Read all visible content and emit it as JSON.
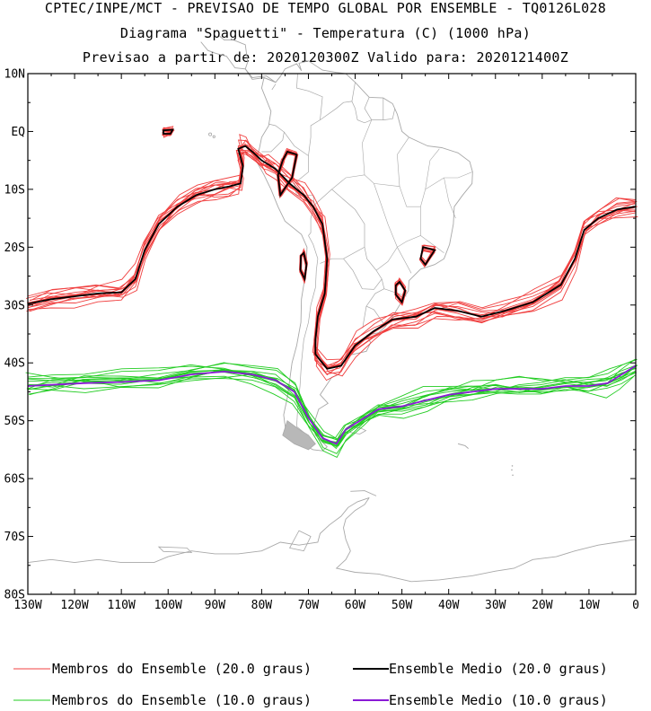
{
  "header": {
    "line1": "CPTEC/INPE/MCT - PREVISAO DE TEMPO GLOBAL POR ENSEMBLE - TQ0126L028",
    "line2": "Diagrama \"Spaguetti\" - Temperatura (C) (1000 hPa)",
    "line3": "Previsao a partir de: 2020120300Z  Valido para: 2020121400Z"
  },
  "map": {
    "lon_range": [
      -130,
      0
    ],
    "lat_range": [
      -80,
      10
    ],
    "y_tick_labels": [
      {
        "lat": 10,
        "label": "10N"
      },
      {
        "lat": 0,
        "label": "EQ"
      },
      {
        "lat": -10,
        "label": "10S"
      },
      {
        "lat": -20,
        "label": "20S"
      },
      {
        "lat": -30,
        "label": "30S"
      },
      {
        "lat": -40,
        "label": "40S"
      },
      {
        "lat": -50,
        "label": "50S"
      },
      {
        "lat": -60,
        "label": "60S"
      },
      {
        "lat": -70,
        "label": "70S"
      },
      {
        "lat": -80,
        "label": "80S"
      }
    ],
    "x_tick_labels": [
      {
        "lon": -130,
        "label": "130W"
      },
      {
        "lon": -120,
        "label": "120W"
      },
      {
        "lon": -110,
        "label": "110W"
      },
      {
        "lon": -100,
        "label": "100W"
      },
      {
        "lon": -90,
        "label": "90W"
      },
      {
        "lon": -80,
        "label": "80W"
      },
      {
        "lon": -70,
        "label": "70W"
      },
      {
        "lon": -60,
        "label": "60W"
      },
      {
        "lon": -50,
        "label": "50W"
      },
      {
        "lon": -40,
        "label": "40W"
      },
      {
        "lon": -30,
        "label": "30W"
      },
      {
        "lon": -20,
        "label": "20W"
      },
      {
        "lon": -10,
        "label": "10W"
      },
      {
        "lon": 0,
        "label": "0"
      }
    ],
    "colors": {
      "members_20": "#f04040",
      "mean_20": "#000000",
      "members_10": "#22cc22",
      "mean_10": "#8a1ad6",
      "coast": "#a8a8a8"
    },
    "isotherm_20_mean": [
      [
        -130,
        -29.8
      ],
      [
        -125,
        -29
      ],
      [
        -120,
        -28.5
      ],
      [
        -115,
        -28
      ],
      [
        -110,
        -27.8
      ],
      [
        -107,
        -25.5
      ],
      [
        -105,
        -20.5
      ],
      [
        -102,
        -16
      ],
      [
        -98,
        -13
      ],
      [
        -94,
        -11
      ],
      [
        -90,
        -10
      ],
      [
        -87,
        -9.5
      ],
      [
        -84.5,
        -9
      ],
      [
        -84,
        -6
      ],
      [
        -85,
        -3
      ],
      [
        -83.5,
        -2.5
      ],
      [
        -82,
        -3.5
      ],
      [
        -80,
        -5
      ],
      [
        -79,
        -5.5
      ],
      [
        -77,
        -6.5
      ],
      [
        -74,
        -9
      ],
      [
        -71,
        -11
      ],
      [
        -69,
        -13
      ],
      [
        -67,
        -16
      ],
      [
        -66,
        -22
      ],
      [
        -66.5,
        -28
      ],
      [
        -68,
        -32
      ],
      [
        -68.5,
        -36
      ],
      [
        -68.5,
        -38.5
      ],
      [
        -66,
        -41
      ],
      [
        -63,
        -40.5
      ],
      [
        -60,
        -37
      ],
      [
        -56,
        -34.5
      ],
      [
        -52,
        -32.5
      ],
      [
        -47,
        -32
      ],
      [
        -43,
        -30.5
      ],
      [
        -38,
        -31
      ],
      [
        -33,
        -32
      ],
      [
        -28,
        -31
      ],
      [
        -22,
        -29.5
      ],
      [
        -16,
        -26.5
      ],
      [
        -13,
        -22
      ],
      [
        -11,
        -17
      ],
      [
        -8,
        -15
      ],
      [
        -4,
        -13.5
      ],
      [
        0,
        -13
      ]
    ],
    "isotherm_20_mean_closed": [
      [
        [
          -74.5,
          -3.5
        ],
        [
          -72.5,
          -4
        ],
        [
          -73.5,
          -8
        ],
        [
          -76,
          -11
        ],
        [
          -76.5,
          -7.5
        ],
        [
          -75.5,
          -5
        ]
      ],
      [
        [
          -101,
          0.2
        ],
        [
          -99,
          0.3
        ],
        [
          -99.5,
          -0.4
        ],
        [
          -101,
          -0.4
        ]
      ],
      [
        [
          -71,
          -21
        ],
        [
          -70.4,
          -23
        ],
        [
          -70.8,
          -25.5
        ],
        [
          -71.7,
          -24
        ],
        [
          -71.6,
          -21.5
        ]
      ],
      [
        [
          -50.5,
          -26
        ],
        [
          -49.3,
          -27.5
        ],
        [
          -50,
          -29.5
        ],
        [
          -51.3,
          -28.2
        ],
        [
          -51.3,
          -26.6
        ]
      ],
      [
        [
          -45.5,
          -20
        ],
        [
          -43,
          -20.5
        ],
        [
          -45,
          -23
        ],
        [
          -46,
          -22
        ]
      ]
    ],
    "isotherm_10_mean": [
      [
        -130,
        -44
      ],
      [
        -125,
        -43.8
      ],
      [
        -118,
        -43.5
      ],
      [
        -110,
        -43.3
      ],
      [
        -102,
        -43
      ],
      [
        -95,
        -42
      ],
      [
        -88,
        -41.5
      ],
      [
        -82,
        -42
      ],
      [
        -77,
        -43
      ],
      [
        -73,
        -45
      ],
      [
        -70,
        -49.5
      ],
      [
        -67,
        -53
      ],
      [
        -64,
        -54
      ],
      [
        -62,
        -51.5
      ],
      [
        -58,
        -49.5
      ],
      [
        -55,
        -48
      ],
      [
        -50,
        -47.5
      ],
      [
        -45,
        -46.5
      ],
      [
        -40,
        -45.5
      ],
      [
        -35,
        -45
      ],
      [
        -30,
        -44.5
      ],
      [
        -25,
        -44.5
      ],
      [
        -20,
        -44.5
      ],
      [
        -15,
        -44
      ],
      [
        -10,
        -44
      ],
      [
        -6,
        -43.5
      ],
      [
        -3,
        -42
      ],
      [
        0,
        -40.5
      ]
    ]
  },
  "legend": {
    "items": [
      {
        "label": "Membros do Ensemble (20.0 graus)"
      },
      {
        "label": "Ensemble Medio (20.0 graus)"
      },
      {
        "label": "Membros do Ensemble (10.0 graus)"
      },
      {
        "label": "Ensemble Medio (10.0 graus)"
      }
    ]
  }
}
